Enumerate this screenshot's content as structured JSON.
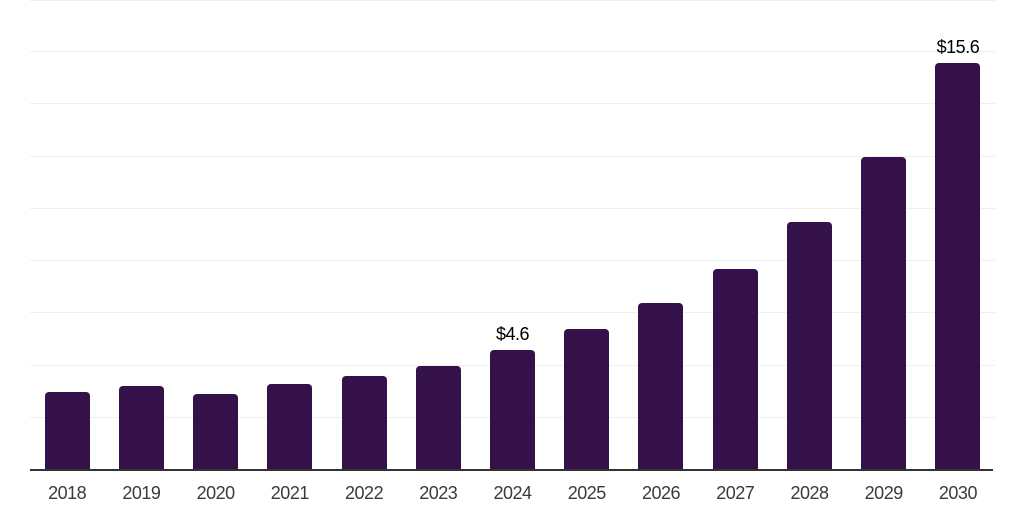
{
  "chart_data": {
    "type": "bar",
    "title": "",
    "xlabel": "",
    "ylabel": "",
    "categories": [
      "2018",
      "2019",
      "2020",
      "2021",
      "2022",
      "2023",
      "2024",
      "2025",
      "2026",
      "2027",
      "2028",
      "2029",
      "2030"
    ],
    "values": [
      3.0,
      3.2,
      2.9,
      3.3,
      3.6,
      4.0,
      4.6,
      5.4,
      6.4,
      7.7,
      9.5,
      12.0,
      15.6
    ],
    "data_labels": [
      "",
      "",
      "",
      "",
      "",
      "",
      "$4.6",
      "",
      "",
      "",
      "",
      "",
      "$15.6"
    ],
    "ylim": [
      0,
      18
    ],
    "gridline_step": 2,
    "grid": "horizontal-only",
    "legend": "none",
    "y_axis_ticks_visible": false,
    "colors": {
      "bar": "#341249",
      "gridline": "#efefef",
      "axis_line": "#333333",
      "x_tick_label": "#3b3b3b",
      "data_label": "#000000",
      "background": "#ffffff"
    }
  }
}
